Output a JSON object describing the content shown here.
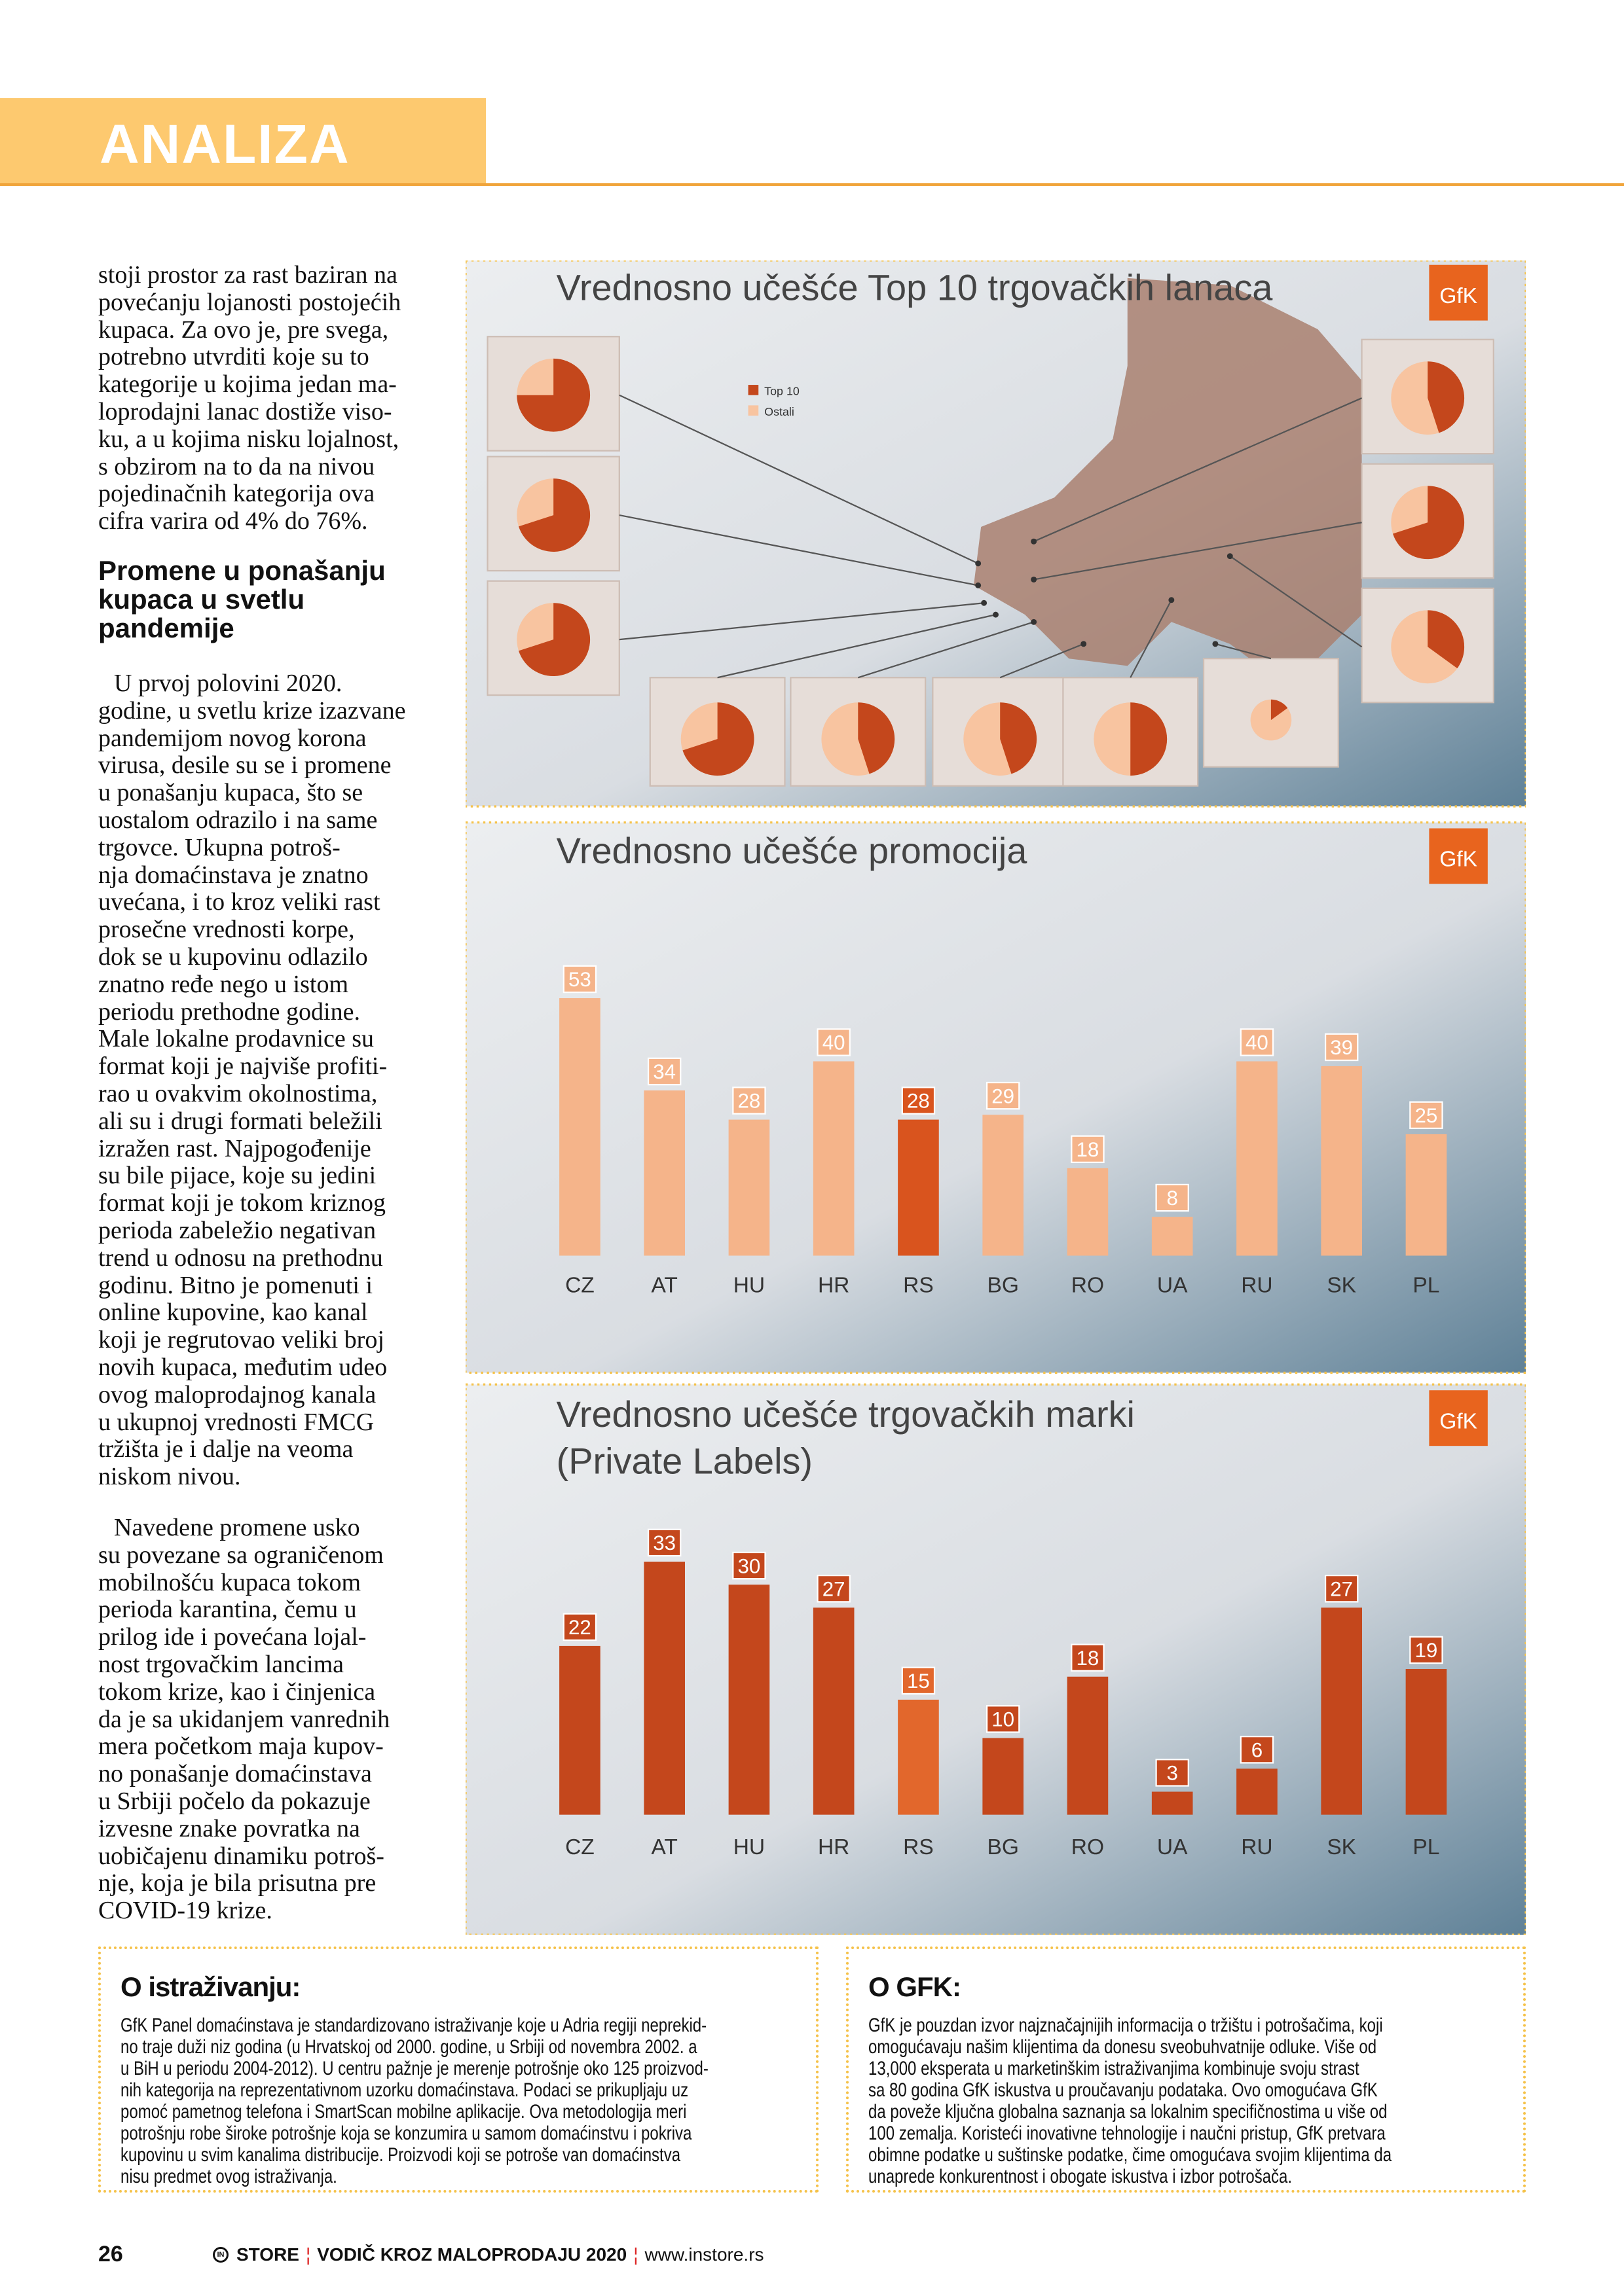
{
  "header": {
    "section": "ANALIZA",
    "accent": "#fdc96f"
  },
  "article": {
    "para1": [
      "stoji prostor za rast baziran na",
      "povećanju lojanosti postojećih",
      "kupaca. Za ovo je, pre svega,",
      "potrebno utvrditi koje su to",
      "kategorije u kojima jedan ma-",
      "loprodajni lanac dostiže viso-",
      "ku, a u kojima nisku lojalnost,",
      "s obzirom na to da na nivou",
      "pojedinačnih kategorija ova",
      "cifra varira od 4% do 76%."
    ],
    "heading": [
      "Promene u ponašanju",
      "kupaca u svetlu",
      "pandemije"
    ],
    "para2": [
      "U prvoj polovini 2020.",
      "godine, u svetlu krize izazvane",
      "pandemijom novog korona",
      "virusa, desile su se i promene",
      "u ponašanju kupaca, što se",
      "uostalom odrazilo i na same",
      "trgovce. Ukupna potroš-",
      "nja domaćinstava je znatno",
      "uvećana, i to kroz veliki rast",
      "prosečne vrednosti korpe,",
      "dok se u kupovinu odlazilo",
      "znatno ređe nego u istom",
      "periodu prethodne godine.",
      "Male lokalne prodavnice su",
      "format koji je najviše profiti-",
      "rao u ovakvim okolnostima,",
      "ali su i drugi formati beležili",
      "izražen rast. Najpogođenije",
      "su bile pijace, koje su jedini",
      "format koji je tokom kriznog",
      "perioda zabeležio negativan",
      "trend u odnosu na prethodnu",
      "godinu. Bitno je pomenuti i",
      "online kupovine, kao kanal",
      "koji je regrutovao veliki broj",
      "novih kupaca, međutim udeo",
      "ovog maloprodajnog kanala",
      "u ukupnoj vrednosti FMCG",
      "tržišta je i dalje na veoma",
      "niskom nivou."
    ],
    "para3": [
      "Navedene promene usko",
      "su povezane sa ograničenom",
      "mobilnošću kupaca tokom",
      "perioda karantina, čemu u",
      "prilog ide i povećana lojal-",
      "nost trgovačkim lancima",
      "tokom krize, kao i činjenica",
      "da je sa ukidanjem vanrednih",
      "mera početkom maja kupov-",
      "no ponašanje domaćinstava",
      "u Srbiji počelo da pokazuje",
      "izvesne znake povratka na",
      "uobičajenu dinamiku potroš-",
      "nje, koja je bila prisutna pre",
      "COVID-19 krize."
    ]
  },
  "chart_data": [
    {
      "type": "pie",
      "title": "Vrednosno učešće Top 10 trgovačkih lanaca",
      "logo": "GfK",
      "legend": [
        "Top 10",
        "Ostali"
      ],
      "top10_share_estimates": [
        0.75,
        0.7,
        0.7,
        0.45,
        0.7,
        0.35,
        0.7,
        0.45,
        0.45,
        0.5,
        0.15
      ],
      "colors": {
        "top10": "#c4471c",
        "other": "#f8c4a0"
      }
    },
    {
      "type": "bar",
      "title": "Vrednosno učešće promocija",
      "logo": "GfK",
      "categories": [
        "CZ",
        "AT",
        "HU",
        "HR",
        "RS",
        "BG",
        "RO",
        "UA",
        "RU",
        "SK",
        "PL"
      ],
      "values": [
        53,
        34,
        28,
        40,
        28,
        29,
        18,
        8,
        40,
        39,
        25
      ],
      "highlight": "RS",
      "colors": {
        "bar": "#f5b48a",
        "highlight": "#d9541e"
      }
    },
    {
      "type": "bar",
      "title": "Vrednosno učešće trgovačkih marki",
      "subtitle": "(Private Labels)",
      "logo": "GfK",
      "categories": [
        "CZ",
        "AT",
        "HU",
        "HR",
        "RS",
        "BG",
        "RO",
        "UA",
        "RU",
        "SK",
        "PL"
      ],
      "values": [
        22,
        33,
        30,
        27,
        15,
        10,
        18,
        3,
        6,
        27,
        19
      ],
      "highlight": "RS",
      "colors": {
        "bar": "#c4471c",
        "highlight": "#e2672c"
      }
    }
  ],
  "boxes": {
    "research": {
      "title": "O istraživanju:",
      "lines": [
        "GfK Panel domaćinstava je standardizovano istraživanje koje u Adria regiji neprekid-",
        "no traje  duži niz godina (u Hrvatskoj od 2000. godine, u Srbiji od novembra 2002. a",
        "u BiH u periodu 2004-2012). U centru pažnje je merenje potrošnje oko 125 proizvod-",
        "nih kategorija na reprezentativnom uzorku domaćinstava. Podaci se prikupljaju uz",
        "pomoć pametnog telefona i SmartScan mobilne aplikacije. Ova metodologija meri",
        "potrošnju robe široke potrošnje koja se konzumira u samom domaćinstvu i pokriva",
        "kupovinu u svim kanalima distribucije. Proizvodi koji se potroše van domaćinstva",
        "nisu predmet ovog istraživanja."
      ]
    },
    "gfk": {
      "title": "O GFK:",
      "lines": [
        "GfK je pouzdan izvor najznačajnijih informacija o tržištu i potrošačima, koji",
        "omogućavaju našim klijentima da donesu sveobuhvatnije odluke. Više od",
        "13,000 eksperata u marketinškim istraživanjima kombinuje svoju strast",
        "sa 80 godina GfK iskustva u proučavanju podataka. Ovo omogućava GfK",
        "da poveže ključna globalna saznanja sa lokalnim specifičnostima u više od",
        "100 zemalja. Koristeći inovativne tehnologije i naučni pristup, GfK pretvara",
        "obimne podatke u suštinske podatke, čime omogućava svojim klijentima da",
        "unaprede konkurentnost i obogate iskustva i izbor potrošača."
      ]
    }
  },
  "footer": {
    "page": "26",
    "logo_mark": "IN",
    "brand": "STORE",
    "publication": "VODIČ KROZ MALOPRODAJU 2020",
    "url": "www.instore.rs"
  }
}
